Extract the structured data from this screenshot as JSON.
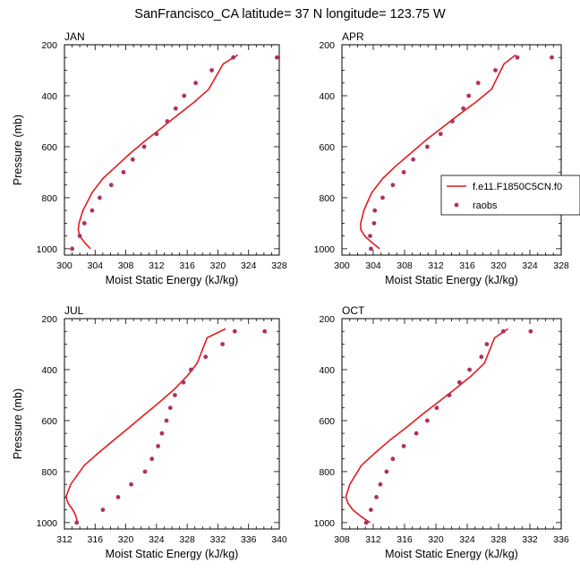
{
  "title": "SanFrancisco_CA  latitude= 37 N longitude= 123.75 W",
  "colors": {
    "model": "#e31a1c",
    "obs": "#b03060"
  },
  "legend": {
    "placement": "right of APR panel",
    "entries": [
      {
        "label": "f.e11.F1850C5CN.f0",
        "symbol": "line"
      },
      {
        "label": "raobs",
        "symbol": "marker"
      }
    ]
  },
  "chart_data": [
    {
      "type": "line",
      "panel_label": "JAN",
      "xlabel": "Moist Static Energy (kJ/kg)",
      "ylabel": "Pressure (mb)",
      "xlim": [
        300,
        328
      ],
      "ylim": [
        1025,
        200
      ],
      "xticks": [
        300,
        304,
        308,
        312,
        316,
        320,
        324,
        328
      ],
      "yticks": [
        200,
        400,
        600,
        800,
        1000
      ],
      "series": [
        {
          "name": "f.e11.F1850C5CN.f0",
          "style": "line",
          "x": [
            303.4,
            302.6,
            302.0,
            301.8,
            301.9,
            302.4,
            303.6,
            305.0,
            306.8,
            308.6,
            310.6,
            312.7,
            314.8,
            316.9,
            318.8,
            320.7,
            322.6
          ],
          "y": [
            1000,
            975,
            950,
            925,
            900,
            850,
            780,
            725,
            675,
            625,
            575,
            525,
            475,
            425,
            375,
            275,
            240
          ]
        },
        {
          "name": "raobs",
          "style": "marker",
          "x": [
            301.0,
            302.0,
            302.6,
            303.6,
            304.6,
            306.1,
            307.7,
            308.9,
            310.4,
            312.0,
            313.4,
            314.5,
            315.6,
            317.1,
            319.2,
            322.0,
            327.7
          ],
          "y": [
            1000,
            950,
            900,
            850,
            800,
            750,
            700,
            650,
            600,
            550,
            500,
            450,
            400,
            350,
            300,
            250,
            250
          ]
        }
      ]
    },
    {
      "type": "line",
      "panel_label": "APR",
      "xlabel": "Moist Static Energy (kJ/kg)",
      "ylabel": "",
      "xlim": [
        300,
        328
      ],
      "ylim": [
        1025,
        200
      ],
      "xticks": [
        300,
        304,
        308,
        312,
        316,
        320,
        324,
        328
      ],
      "yticks": [
        200,
        400,
        600,
        800,
        1000
      ],
      "series": [
        {
          "name": "f.e11.F1850C5CN.f0",
          "style": "line",
          "x": [
            304.8,
            303.8,
            302.9,
            302.4,
            302.4,
            302.8,
            303.8,
            305.2,
            306.9,
            308.8,
            310.7,
            312.8,
            314.9,
            317.1,
            319.1,
            320.7,
            322.2
          ],
          "y": [
            1000,
            975,
            950,
            925,
            900,
            850,
            780,
            725,
            675,
            625,
            575,
            525,
            475,
            425,
            375,
            275,
            240
          ]
        },
        {
          "name": "raobs",
          "style": "marker",
          "x": [
            303.7,
            303.6,
            304.1,
            304.2,
            305.2,
            306.5,
            307.9,
            309.1,
            310.9,
            312.6,
            314.1,
            315.5,
            316.2,
            317.4,
            319.6,
            322.4,
            326.8
          ],
          "y": [
            1000,
            950,
            900,
            850,
            800,
            750,
            700,
            650,
            600,
            550,
            500,
            450,
            400,
            350,
            300,
            250,
            250
          ]
        }
      ]
    },
    {
      "type": "line",
      "panel_label": "JUL",
      "xlabel": "Moist Static Energy (kJ/kg)",
      "ylabel": "Pressure (mb)",
      "xlim": [
        312,
        340
      ],
      "ylim": [
        1025,
        200
      ],
      "xticks": [
        312,
        316,
        320,
        324,
        328,
        332,
        336,
        340
      ],
      "yticks": [
        200,
        400,
        600,
        800,
        1000
      ],
      "series": [
        {
          "name": "f.e11.F1850C5CN.f0",
          "style": "line",
          "x": [
            313.7,
            313.5,
            313.1,
            312.5,
            312.2,
            312.8,
            314.6,
            316.5,
            318.5,
            320.5,
            322.5,
            324.5,
            326.4,
            328.0,
            329.3,
            330.6,
            333.0
          ],
          "y": [
            1000,
            975,
            950,
            925,
            900,
            850,
            775,
            725,
            675,
            625,
            575,
            525,
            475,
            425,
            375,
            275,
            240
          ]
        },
        {
          "name": "raobs",
          "style": "marker",
          "x": [
            313.6,
            317.0,
            319.0,
            320.7,
            322.5,
            323.4,
            324.2,
            324.7,
            325.3,
            325.8,
            326.4,
            327.5,
            328.5,
            330.4,
            332.6,
            334.2,
            338.1
          ],
          "y": [
            1000,
            950,
            900,
            850,
            800,
            750,
            700,
            650,
            600,
            550,
            500,
            450,
            400,
            350,
            300,
            250,
            250
          ]
        }
      ]
    },
    {
      "type": "line",
      "panel_label": "OCT",
      "xlabel": "Moist Static Energy (kJ/kg)",
      "ylabel": "",
      "xlim": [
        308,
        336
      ],
      "ylim": [
        1025,
        200
      ],
      "xticks": [
        308,
        312,
        316,
        320,
        324,
        328,
        332,
        336
      ],
      "yticks": [
        200,
        400,
        600,
        800,
        1000
      ],
      "series": [
        {
          "name": "f.e11.F1850C5CN.f0",
          "style": "line",
          "x": [
            311.6,
            310.4,
            309.4,
            308.8,
            308.5,
            309.0,
            310.5,
            312.3,
            314.2,
            316.3,
            318.3,
            320.4,
            322.5,
            324.5,
            326.2,
            327.5,
            329.2
          ],
          "y": [
            1000,
            975,
            950,
            925,
            900,
            850,
            775,
            725,
            675,
            625,
            575,
            525,
            475,
            425,
            375,
            275,
            240
          ]
        },
        {
          "name": "raobs",
          "style": "marker",
          "x": [
            311.1,
            311.7,
            312.4,
            312.9,
            313.7,
            314.5,
            315.9,
            317.5,
            318.9,
            320.1,
            321.7,
            323.0,
            324.3,
            325.8,
            326.5,
            328.6,
            332.1
          ],
          "y": [
            1000,
            950,
            900,
            850,
            800,
            750,
            700,
            650,
            600,
            550,
            500,
            450,
            400,
            350,
            300,
            250,
            250
          ]
        }
      ]
    }
  ]
}
